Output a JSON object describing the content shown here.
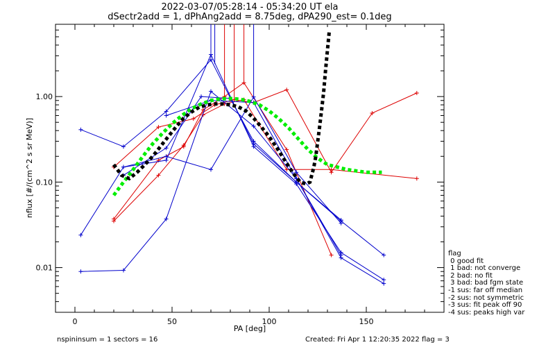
{
  "chart_data": {
    "type": "line",
    "title": "2022-03-07/05:28:14 - 05:34:20 UT ela",
    "subtitle": "dSectr2add = 1, dPhAng2add = 8.75deg, dPA290_est=   0.1deg",
    "xlabel": "PA [deg]",
    "ylabel": "nflux [#/(cm^2 s sr MeV)]",
    "xlim": [
      -10,
      190
    ],
    "ylim": [
      0.003,
      7.0
    ],
    "yscale": "log",
    "xticks": [
      0,
      50,
      100,
      150
    ],
    "xtick_labels": [
      "0",
      "50",
      "100",
      "150"
    ],
    "yticks": [
      0.01,
      0.1,
      1.0
    ],
    "ytick_labels": [
      "0.01",
      "0.10",
      "1.00"
    ],
    "grid": false,
    "colors": {
      "blue": "#0000cc",
      "red": "#dd0000",
      "green": "#00ee00",
      "black": "#000000"
    },
    "series": [
      {
        "color": "#dd0000",
        "style": "line-plus",
        "x": [
          20,
          43,
          56,
          66,
          77,
          87,
          109,
          132
        ],
        "y": [
          0.037,
          0.18,
          0.26,
          0.7,
          1.0,
          1.45,
          0.24,
          0.014
        ]
      },
      {
        "color": "#dd0000",
        "style": "line-plus",
        "x": [
          20,
          43,
          61,
          72,
          82,
          92,
          109,
          132,
          153,
          176
        ],
        "y": [
          0.15,
          0.44,
          0.55,
          0.8,
          0.92,
          0.85,
          1.2,
          0.13,
          0.64,
          1.1
        ]
      },
      {
        "color": "#dd0000",
        "style": "line-plus",
        "x": [
          20,
          43,
          56,
          66,
          77,
          87,
          109,
          132,
          176
        ],
        "y": [
          0.035,
          0.12,
          0.27,
          0.61,
          0.82,
          0.92,
          0.14,
          0.14,
          0.11
        ]
      },
      {
        "color": "#0000cc",
        "style": "line-plus",
        "x": [
          3,
          25,
          47,
          70,
          92,
          114,
          137,
          159
        ],
        "y": [
          0.41,
          0.26,
          0.67,
          2.7,
          0.28,
          0.1,
          0.035,
          0.014
        ]
      },
      {
        "color": "#0000cc",
        "style": "line-plus",
        "x": [
          3,
          25,
          47,
          70,
          92,
          114,
          137,
          159
        ],
        "y": [
          0.024,
          0.15,
          0.18,
          3.1,
          0.26,
          0.095,
          0.015,
          0.0072
        ]
      },
      {
        "color": "#0000cc",
        "style": "line-plus",
        "x": [
          3,
          25,
          47,
          70,
          92,
          114,
          137,
          159
        ],
        "y": [
          0.009,
          0.0093,
          0.037,
          1.15,
          0.45,
          0.11,
          0.013,
          0.0065
        ]
      },
      {
        "color": "#0000cc",
        "style": "line-plus",
        "x": [
          25,
          47,
          70,
          92,
          114,
          137
        ],
        "y": [
          0.15,
          0.2,
          0.14,
          0.99,
          0.13,
          0.033
        ]
      },
      {
        "color": "#0000cc",
        "style": "line-plus",
        "x": [
          25,
          47,
          65,
          80,
          92,
          114,
          137
        ],
        "y": [
          0.12,
          0.25,
          1.0,
          0.95,
          0.3,
          0.1,
          0.036
        ]
      },
      {
        "color": "#0000cc",
        "style": "line-plus",
        "x": [
          47,
          70,
          92,
          114,
          137
        ],
        "y": [
          0.6,
          0.9,
          0.85,
          0.11,
          0.014
        ]
      },
      {
        "color": "#00ee00",
        "style": "dotted-thick",
        "x": [
          20,
          25,
          30,
          35,
          40,
          45,
          50,
          55,
          60,
          65,
          70,
          75,
          80,
          85,
          90,
          95,
          100,
          105,
          110,
          115,
          120,
          125,
          130,
          135,
          140,
          145,
          150,
          155,
          158
        ],
        "y": [
          0.07,
          0.1,
          0.14,
          0.2,
          0.28,
          0.37,
          0.48,
          0.6,
          0.72,
          0.82,
          0.9,
          0.94,
          0.95,
          0.93,
          0.88,
          0.8,
          0.68,
          0.55,
          0.43,
          0.32,
          0.24,
          0.19,
          0.16,
          0.15,
          0.14,
          0.135,
          0.13,
          0.13,
          0.13
        ]
      },
      {
        "color": "#000000",
        "style": "dotted-thick",
        "x": [
          20,
          24,
          28,
          32,
          36,
          40,
          44,
          48,
          52,
          56,
          60,
          64,
          68,
          72,
          76,
          80,
          84,
          88,
          92,
          96,
          100,
          104,
          108,
          112,
          116,
          119,
          121,
          123,
          124,
          125,
          126,
          127,
          128,
          129,
          130,
          131
        ],
        "y": [
          0.16,
          0.12,
          0.11,
          0.13,
          0.16,
          0.2,
          0.26,
          0.34,
          0.44,
          0.56,
          0.66,
          0.75,
          0.8,
          0.82,
          0.82,
          0.8,
          0.76,
          0.68,
          0.56,
          0.44,
          0.34,
          0.25,
          0.18,
          0.13,
          0.1,
          0.095,
          0.1,
          0.15,
          0.2,
          0.3,
          0.45,
          0.7,
          1.1,
          2.0,
          3.5,
          6.0
        ]
      }
    ],
    "spikes": [
      {
        "color": "#dd0000",
        "x": 77,
        "y0": 1.0
      },
      {
        "color": "#dd0000",
        "x": 82,
        "y0": 0.92
      },
      {
        "color": "#dd0000",
        "x": 87,
        "y0": 1.45
      },
      {
        "color": "#0000cc",
        "x": 70,
        "y0": 2.7
      },
      {
        "color": "#0000cc",
        "x": 72,
        "y0": 2.4
      },
      {
        "color": "#0000cc",
        "x": 92,
        "y0": 0.99
      }
    ]
  },
  "footer": {
    "left": "nspininsum =  1   sectors = 16",
    "right": "Created: Fri Apr  1 12:20:35 2022   flag = 3"
  },
  "legend": {
    "title": "flag",
    "items": [
      " 0 good fit",
      " 1 bad: not converge",
      " 2 bad: no fit",
      " 3 bad: bad fgm state",
      "-1 sus: far off median",
      "-2 sus: not symmetric",
      "-3 sus: fit peak off 90",
      "-4 sus: peaks high var"
    ]
  }
}
